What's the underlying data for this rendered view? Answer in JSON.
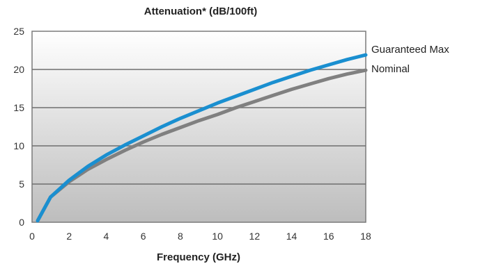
{
  "chart_data": {
    "type": "line",
    "title": "Attenuation* (dB/100ft)",
    "xlabel": "Frequency (GHz)",
    "ylabel": "",
    "xlim": [
      0,
      18
    ],
    "ylim": [
      0,
      25
    ],
    "xticks": [
      "0",
      "2",
      "4",
      "6",
      "8",
      "10",
      "12",
      "14",
      "16",
      "18"
    ],
    "yticks": [
      "0",
      "5",
      "10",
      "15",
      "20",
      "25"
    ],
    "grid": "horizontal",
    "legend_placement": "right end of lines",
    "series": [
      {
        "name": "Guaranteed Max",
        "color": "#1a8fd0",
        "x": [
          0.3,
          1,
          2,
          3,
          4,
          5,
          6,
          7,
          8,
          9,
          10,
          11,
          12,
          13,
          14,
          15,
          16,
          17,
          18
        ],
        "y": [
          0.2,
          3.3,
          5.5,
          7.3,
          8.8,
          10.1,
          11.3,
          12.5,
          13.6,
          14.6,
          15.6,
          16.5,
          17.4,
          18.3,
          19.1,
          19.9,
          20.6,
          21.3,
          21.9
        ]
      },
      {
        "name": "Nominal",
        "color": "#808080",
        "x": [
          0.3,
          1,
          2,
          3,
          4,
          5,
          6,
          7,
          8,
          9,
          10,
          11,
          12,
          13,
          14,
          15,
          16,
          17,
          18
        ],
        "y": [
          0.2,
          3.3,
          5.3,
          6.9,
          8.2,
          9.4,
          10.5,
          11.5,
          12.4,
          13.3,
          14.1,
          15.0,
          15.8,
          16.6,
          17.4,
          18.1,
          18.8,
          19.4,
          19.9
        ]
      }
    ]
  }
}
